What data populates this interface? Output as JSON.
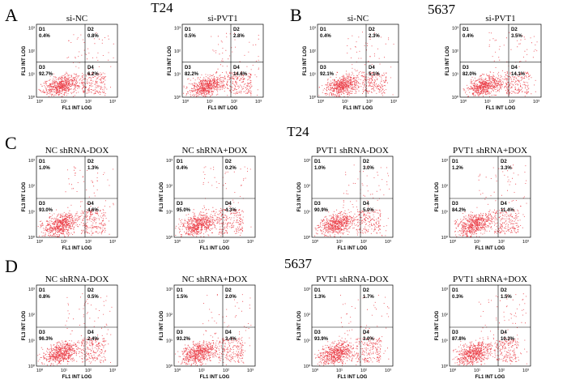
{
  "quadrant_names": [
    "D1",
    "D2",
    "D3",
    "D4"
  ],
  "axis": {
    "x_label": "FL1 INT LOG",
    "y_label": "FL3 INT LOG",
    "ticks": [
      "10⁰",
      "10¹",
      "10²",
      "10³"
    ]
  },
  "panels": [
    {
      "label": "A",
      "heading": "T24",
      "plots": [
        {
          "title": "si-NC",
          "values": [
            "0.4%",
            "0.8%",
            "92.7%",
            "6.2%"
          ]
        },
        {
          "title": "si-PVT1",
          "values": [
            "0.5%",
            "2.8%",
            "82.2%",
            "14.6%"
          ]
        }
      ]
    },
    {
      "label": "B",
      "heading": "5637",
      "plots": [
        {
          "title": "si-NC",
          "values": [
            "0.4%",
            "2.3%",
            "92.1%",
            "5.1%"
          ]
        },
        {
          "title": "si-PVT1",
          "values": [
            "0.4%",
            "3.5%",
            "82.0%",
            "14.1%"
          ]
        }
      ]
    },
    {
      "label": "C",
      "heading": "T24",
      "plots": [
        {
          "title": "NC shRNA-DOX",
          "values": [
            "1.0%",
            "1.3%",
            "93.0%",
            "4.6%"
          ]
        },
        {
          "title": "NC shRNA+DOX",
          "values": [
            "0.4%",
            "0.2%",
            "95.0%",
            "4.3%"
          ]
        },
        {
          "title": "PVT1 shRNA-DOX",
          "values": [
            "1.0%",
            "3.0%",
            "90.9%",
            "5.0%"
          ]
        },
        {
          "title": "PVT1 shRNA+DOX",
          "values": [
            "1.2%",
            "3.3%",
            "84.2%",
            "11.4%"
          ]
        }
      ]
    },
    {
      "label": "D",
      "heading": "5637",
      "plots": [
        {
          "title": "NC shRNA-DOX",
          "values": [
            "0.8%",
            "0.5%",
            "96.3%",
            "2.4%"
          ]
        },
        {
          "title": "NC shRNA+DOX",
          "values": [
            "1.5%",
            "2.0%",
            "93.2%",
            "3.4%"
          ]
        },
        {
          "title": "PVT1 shRNA-DOX",
          "values": [
            "1.3%",
            "1.7%",
            "93.9%",
            "3.0%"
          ]
        },
        {
          "title": "PVT1 shRNA+DOX",
          "values": [
            "0.3%",
            "1.5%",
            "87.8%",
            "10.3%"
          ]
        }
      ]
    }
  ]
}
